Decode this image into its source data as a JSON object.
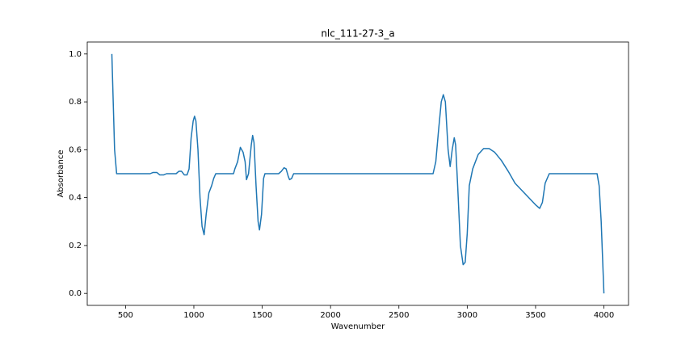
{
  "chart_data": {
    "type": "line",
    "title": "nlc_111-27-3_a",
    "x_label": "Wavenumber",
    "y_label": "Absorbance",
    "x": [
      400,
      410,
      420,
      435,
      680,
      700,
      730,
      750,
      780,
      800,
      870,
      890,
      910,
      930,
      950,
      965,
      980,
      995,
      1005,
      1015,
      1030,
      1045,
      1060,
      1075,
      1090,
      1110,
      1130,
      1145,
      1160,
      1290,
      1300,
      1320,
      1340,
      1360,
      1375,
      1385,
      1400,
      1420,
      1430,
      1440,
      1455,
      1470,
      1480,
      1495,
      1510,
      1520,
      1620,
      1640,
      1660,
      1675,
      1690,
      1700,
      1715,
      1730,
      2750,
      2770,
      2790,
      2810,
      2825,
      2840,
      2860,
      2875,
      2890,
      2905,
      2915,
      2930,
      2950,
      2970,
      2985,
      3000,
      3015,
      3040,
      3080,
      3120,
      3160,
      3200,
      3250,
      3300,
      3350,
      3400,
      3450,
      3500,
      3530,
      3550,
      3570,
      3600,
      3950,
      3965,
      3980,
      4000
    ],
    "series": [
      {
        "name": "nlc_111-27-3_a",
        "color": "#1f77b4",
        "values": [
          1.0,
          0.8,
          0.6,
          0.5,
          0.5,
          0.505,
          0.505,
          0.495,
          0.495,
          0.5,
          0.5,
          0.51,
          0.51,
          0.495,
          0.495,
          0.52,
          0.65,
          0.72,
          0.74,
          0.72,
          0.6,
          0.4,
          0.28,
          0.245,
          0.33,
          0.42,
          0.45,
          0.48,
          0.5,
          0.5,
          0.52,
          0.55,
          0.61,
          0.59,
          0.55,
          0.475,
          0.5,
          0.62,
          0.66,
          0.63,
          0.45,
          0.3,
          0.265,
          0.33,
          0.48,
          0.5,
          0.5,
          0.51,
          0.525,
          0.52,
          0.49,
          0.475,
          0.48,
          0.5,
          0.5,
          0.55,
          0.68,
          0.8,
          0.83,
          0.8,
          0.6,
          0.53,
          0.6,
          0.65,
          0.62,
          0.45,
          0.2,
          0.12,
          0.13,
          0.25,
          0.45,
          0.52,
          0.58,
          0.605,
          0.605,
          0.59,
          0.555,
          0.51,
          0.46,
          0.43,
          0.4,
          0.37,
          0.355,
          0.38,
          0.46,
          0.5,
          0.5,
          0.45,
          0.3,
          0.0
        ]
      }
    ],
    "xlim": [
      220,
      4180
    ],
    "ylim": [
      -0.05,
      1.05
    ],
    "xticks": [
      500,
      1000,
      1500,
      2000,
      2500,
      3000,
      3500,
      4000
    ],
    "yticks": [
      {
        "value": 0,
        "label": "0.0"
      },
      0.2,
      0.4,
      0.6,
      0.8,
      {
        "value": 1,
        "label": "1.0"
      }
    ],
    "grid": false
  }
}
